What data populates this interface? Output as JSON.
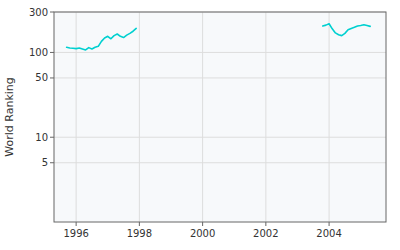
{
  "chart_data": {
    "type": "line",
    "ylabel": "World Ranking",
    "log": "y",
    "grid": true,
    "xlim": [
      1995.3,
      2005.8
    ],
    "xticks": [
      1996,
      1998,
      2000,
      2002,
      2004
    ],
    "ylim": [
      1,
      300
    ],
    "yticks": [
      5,
      10,
      50,
      100,
      300
    ],
    "series": [
      {
        "color": "#00d0d0",
        "x": [
          1995.7,
          1995.8,
          1995.9,
          1996.0,
          1996.1,
          1996.2,
          1996.3,
          1996.4,
          1996.5,
          1996.6,
          1996.7,
          1996.8,
          1996.9,
          1997.0,
          1997.1,
          1997.2,
          1997.3,
          1997.4,
          1997.5,
          1997.6,
          1997.7,
          1997.8,
          1997.9
        ],
        "values": [
          115,
          113,
          112,
          111,
          113,
          110,
          107,
          114,
          110,
          115,
          118,
          135,
          148,
          155,
          145,
          158,
          165,
          155,
          150,
          160,
          168,
          178,
          192
        ]
      },
      {
        "color": "#00d0d0",
        "x": [
          2003.8,
          2003.9,
          2004.0,
          2004.1,
          2004.2,
          2004.3,
          2004.4,
          2004.5,
          2004.6,
          2004.7,
          2004.8,
          2004.9,
          2005.0,
          2005.1,
          2005.2,
          2005.3
        ],
        "values": [
          205,
          210,
          218,
          190,
          170,
          162,
          158,
          168,
          185,
          192,
          198,
          205,
          208,
          212,
          208,
          203
        ]
      }
    ]
  }
}
